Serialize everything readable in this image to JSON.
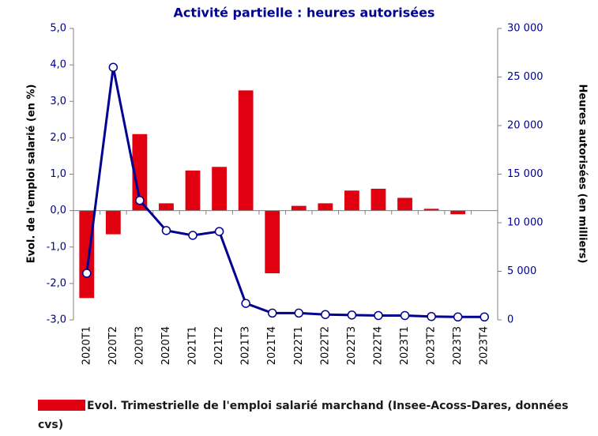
{
  "chart_data": {
    "type": "combo",
    "title": "Activité partielle : heures autorisées",
    "y_label": "Evol. de l'emploi salarié (en %)",
    "y2_label": "Heures autorisées (en milliers)",
    "categories": [
      "2020T1",
      "2020T2",
      "2020T3",
      "2020T4",
      "2021T1",
      "2021T2",
      "2021T3",
      "2021T4",
      "2022T1",
      "2022T2",
      "2022T3",
      "2022T4",
      "2023T1",
      "2023T2",
      "2023T3",
      "2023T4"
    ],
    "series": [
      {
        "name": "Evol. Trimestrielle de l'emploi salarié marchand (Insee-Acoss-Dares, données cvs)",
        "type": "bar",
        "color": "#e1000f",
        "values": [
          -2.4,
          -0.65,
          2.1,
          0.2,
          1.1,
          1.2,
          3.3,
          -1.72,
          0.13,
          0.2,
          0.55,
          0.6,
          0.35,
          0.05,
          -0.1,
          0
        ]
      },
      {
        "type": "line",
        "axis": "y2",
        "color": "#000091",
        "values": [
          4800,
          26000,
          12300,
          9200,
          8700,
          9100,
          1700,
          700,
          700,
          550,
          500,
          450,
          450,
          350,
          300,
          300
        ]
      }
    ],
    "ylim": [
      -3,
      5
    ],
    "yticks": [
      {
        "value": -3,
        "label": "-3,0"
      },
      {
        "value": -2,
        "label": "-2,0"
      },
      {
        "value": -1,
        "label": "-1,0"
      },
      {
        "value": 0,
        "label": "0,0"
      },
      {
        "value": 1,
        "label": "1,0"
      },
      {
        "value": 2,
        "label": "2,0"
      },
      {
        "value": 3,
        "label": "3,0"
      },
      {
        "value": 4,
        "label": "4,0"
      },
      {
        "value": 5,
        "label": "5,0"
      }
    ],
    "y2lim": [
      0,
      30000
    ],
    "y2ticks": [
      0,
      {
        "value": 5000,
        "label": "5 000"
      },
      {
        "value": 10000,
        "label": "10 000"
      },
      {
        "value": 15000,
        "label": "15 000"
      },
      {
        "value": 20000,
        "label": "20 000"
      },
      {
        "value": 25000,
        "label": "25 000"
      },
      {
        "value": 30000,
        "label": "30 000"
      }
    ],
    "legend": "bottom-left"
  }
}
